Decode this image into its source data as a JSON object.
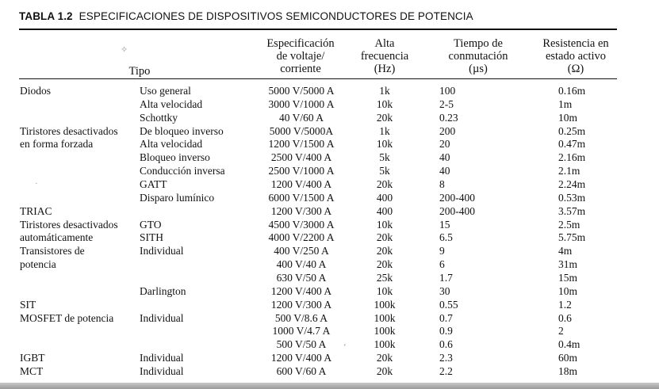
{
  "caption": {
    "number": "TABLA 1.2",
    "title": "ESPECIFICACIONES DE DISPOSITIVOS SEMICONDUCTORES DE POTENCIA"
  },
  "headers": {
    "tipo": "Tipo",
    "voltaje": [
      "Especificación",
      "de voltaje/",
      "corriente"
    ],
    "frecuencia": [
      "Alta",
      "frecuencia",
      "(Hz)"
    ],
    "tiempo": [
      "Tiempo de",
      "conmutación",
      "(µs)"
    ],
    "resistencia": [
      "Resistencia en",
      "estado activo",
      "(Ω)"
    ]
  },
  "rows": [
    {
      "cat": "Diodos",
      "sub": "Uso general",
      "volt": "5000 V/5000 A",
      "freq": "1k",
      "time": "100",
      "res": "0.16m"
    },
    {
      "cat": "",
      "sub": "Alta velocidad",
      "volt": "3000 V/1000 A",
      "freq": "10k",
      "time": "2-5",
      "res": "1m"
    },
    {
      "cat": "",
      "sub": "Schottky",
      "volt": "40 V/60 A",
      "freq": "20k",
      "time": "0.23",
      "res": "10m"
    },
    {
      "cat": "Tiristores desactivados",
      "sub": "De bloqueo inverso",
      "volt": "5000 V/5000A",
      "freq": "1k",
      "time": "200",
      "res": "0.25m"
    },
    {
      "cat": "en forma forzada",
      "sub": "Alta velocidad",
      "volt": "1200 V/1500 A",
      "freq": "10k",
      "time": "20",
      "res": "0.47m"
    },
    {
      "cat": "",
      "sub": "Bloqueo inverso",
      "volt": "2500 V/400 A",
      "freq": "5k",
      "time": "40",
      "res": "2.16m"
    },
    {
      "cat": "",
      "sub": "Conducción inversa",
      "volt": "2500 V/1000 A",
      "freq": "5k",
      "time": "40",
      "res": "2.1m"
    },
    {
      "cat": "",
      "sub": "GATT",
      "volt": "1200 V/400 A",
      "freq": "20k",
      "time": "8",
      "res": "2.24m"
    },
    {
      "cat": "",
      "sub": "Disparo lumínico",
      "volt": "6000 V/1500 A",
      "freq": "400",
      "time": "200-400",
      "res": "0.53m"
    },
    {
      "cat": "TRIAC",
      "sub": "",
      "volt": "1200 V/300 A",
      "freq": "400",
      "time": "200-400",
      "res": "3.57m"
    },
    {
      "cat": "Tiristores desactivados",
      "sub": "GTO",
      "volt": "4500 V/3000 A",
      "freq": "10k",
      "time": "15",
      "res": "2.5m"
    },
    {
      "cat": "automáticamente",
      "sub": "SITH",
      "volt": "4000 V/2200 A",
      "freq": "20k",
      "time": "6.5",
      "res": "5.75m"
    },
    {
      "cat": "Transistores de",
      "sub": "Individual",
      "volt": "400 V/250 A",
      "freq": "20k",
      "time": "9",
      "res": "4m"
    },
    {
      "cat": "potencia",
      "sub": "",
      "volt": "400 V/40 A",
      "freq": "20k",
      "time": "6",
      "res": "31m"
    },
    {
      "cat": "",
      "sub": "",
      "volt": "630 V/50 A",
      "freq": "25k",
      "time": "1.7",
      "res": "15m"
    },
    {
      "cat": "",
      "sub": "Darlington",
      "volt": "1200 V/400 A",
      "freq": "10k",
      "time": "30",
      "res": "10m"
    },
    {
      "cat": "SIT",
      "sub": "",
      "volt": "1200 V/300 A",
      "freq": "100k",
      "time": "0.55",
      "res": "1.2"
    },
    {
      "cat": "MOSFET de potencia",
      "sub": "Individual",
      "volt": "500 V/8.6 A",
      "freq": "100k",
      "time": "0.7",
      "res": "0.6"
    },
    {
      "cat": "",
      "sub": "",
      "volt": "1000 V/4.7 A",
      "freq": "100k",
      "time": "0.9",
      "res": "2"
    },
    {
      "cat": "",
      "sub": "",
      "volt": "500 V/50 A",
      "freq": "100k",
      "time": "0.6",
      "res": "0.4m"
    },
    {
      "cat": "IGBT",
      "sub": "Individual",
      "volt": "1200 V/400 A",
      "freq": "20k",
      "time": "2.3",
      "res": "60m"
    },
    {
      "cat": "MCT",
      "sub": "Individual",
      "volt": "600 V/60 A",
      "freq": "20k",
      "time": "2.2",
      "res": "18m"
    }
  ]
}
